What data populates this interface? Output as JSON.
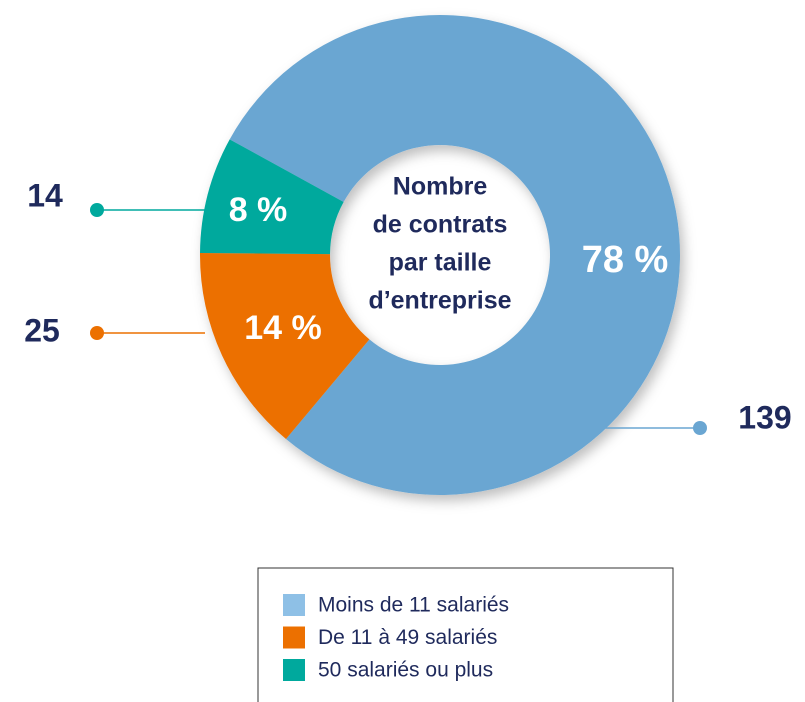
{
  "chart_data": {
    "type": "donut",
    "title_lines": [
      "Nombre",
      "de contrats",
      "par taille",
      "d’entreprise"
    ],
    "categories": [
      "Moins de 11 salariés",
      "De 11 à 49 salariés",
      "50 salariés ou plus"
    ],
    "values": [
      139,
      25,
      14
    ],
    "percent_labels": [
      "78 %",
      "14 %",
      "8 %"
    ],
    "colors": [
      "#6aa6d2",
      "#ec7000",
      "#00a99d"
    ],
    "legend_colors": [
      "#8ec0e6",
      "#ec7000",
      "#00a99d"
    ]
  }
}
